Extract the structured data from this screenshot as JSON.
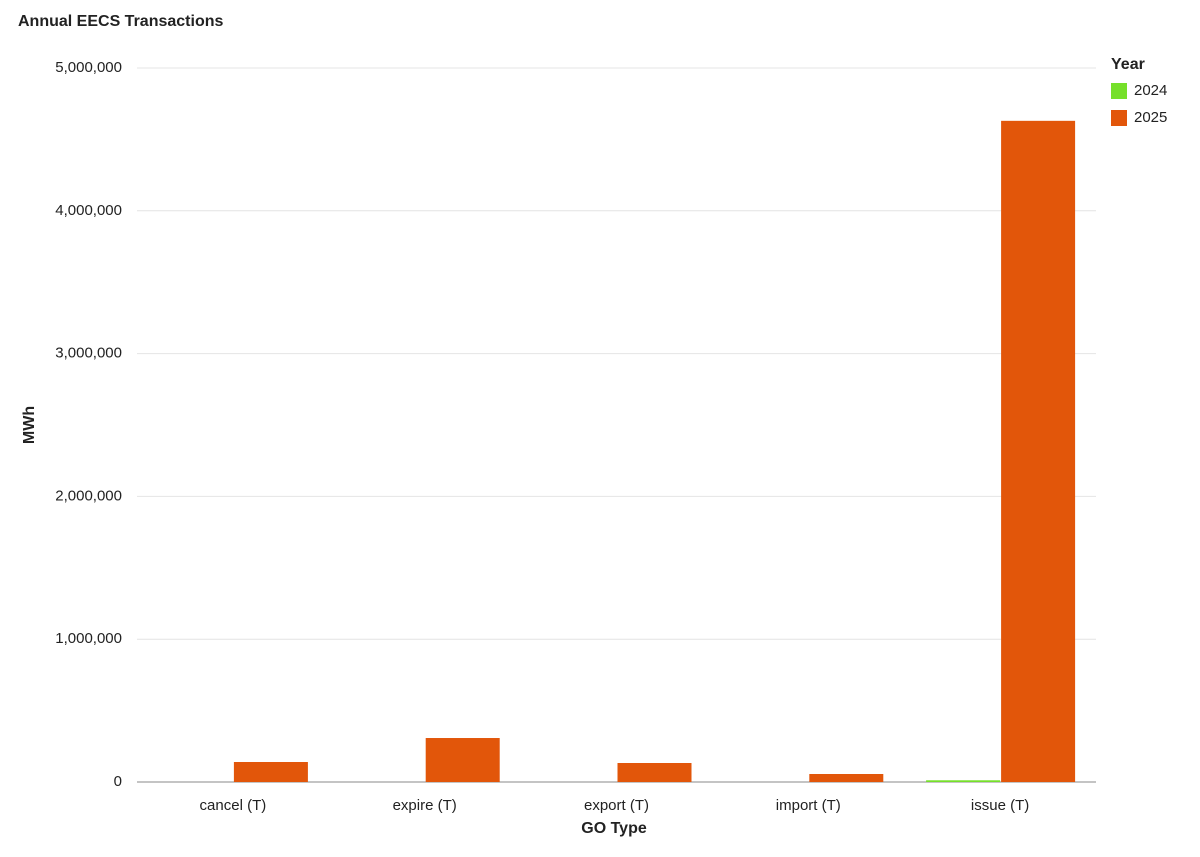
{
  "chart_data": {
    "type": "bar",
    "title": "Annual EECS Transactions",
    "x_label": "GO Type",
    "y_label": "MWh",
    "categories": [
      "cancel (T)",
      "expire (T)",
      "export (T)",
      "import (T)",
      "issue (T)"
    ],
    "legend_title": "Year",
    "legend_position": "top-right",
    "series": [
      {
        "name": "2024",
        "color": "#76e02a",
        "values": [
          0,
          0,
          0,
          0,
          12000
        ]
      },
      {
        "name": "2025",
        "color": "#e2560a",
        "values": [
          140000,
          308000,
          133000,
          56000,
          4630000
        ]
      }
    ],
    "ylim": [
      0,
      5000000
    ],
    "yticks": [
      0,
      {
        "value": 1000000,
        "label": "1,000,000"
      },
      {
        "value": 2000000,
        "label": "2,000,000"
      },
      {
        "value": 3000000,
        "label": "3,000,000"
      },
      {
        "value": 4000000,
        "label": "4,000,000"
      },
      {
        "value": 5000000,
        "label": "5,000,000"
      }
    ],
    "grid": true
  }
}
